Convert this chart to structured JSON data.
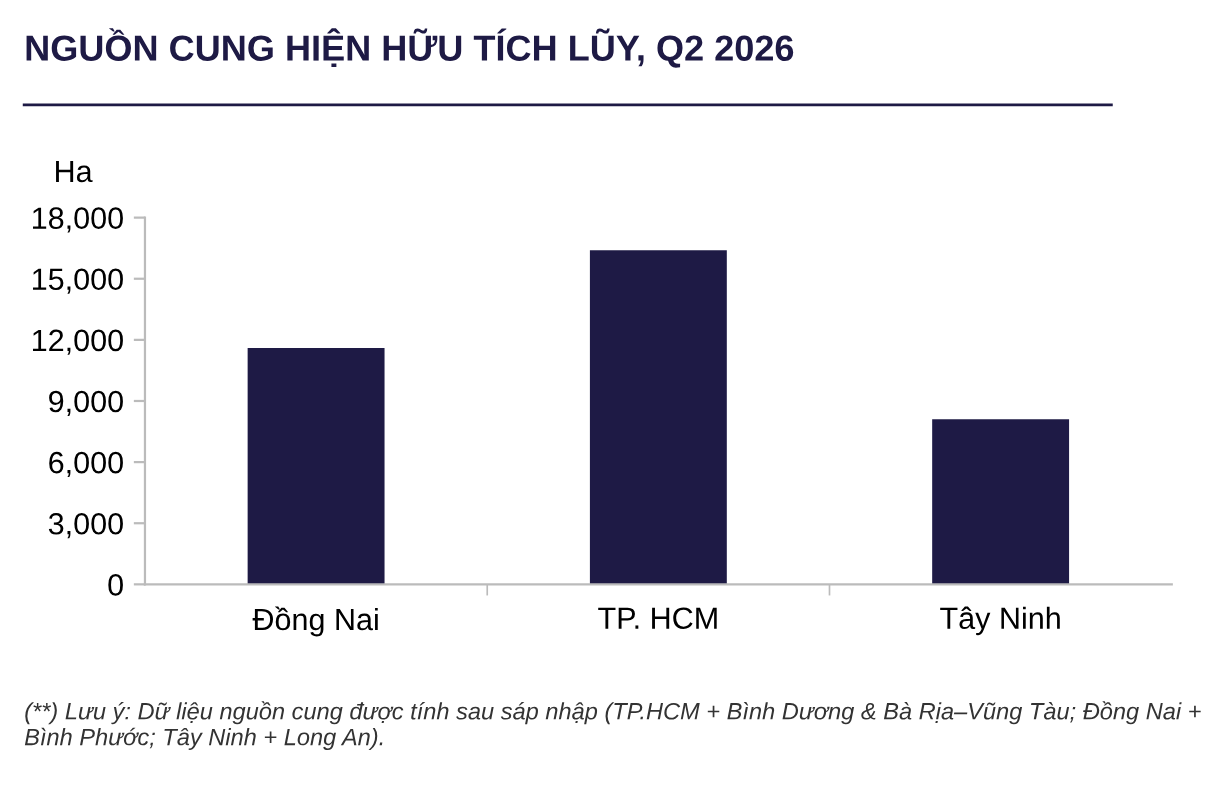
{
  "chart_data": {
    "type": "bar",
    "title": "NGUỒN CUNG HIỆN HỮU TÍCH LŨY, Q2 2026",
    "ylabel": "Ha",
    "categories": [
      "Đồng Nai",
      "TP. HCM",
      "Tây Ninh"
    ],
    "values": [
      11600,
      16400,
      8100
    ],
    "color": "#1e1a45",
    "ylim": [
      0,
      18000
    ],
    "yticks": [
      {
        "value": 0,
        "label": "0"
      },
      {
        "value": 3000,
        "label": "3,000"
      },
      {
        "value": 6000,
        "label": "6,000"
      },
      {
        "value": 9000,
        "label": "9,000"
      },
      {
        "value": 12000,
        "label": "12,000"
      },
      {
        "value": 15000,
        "label": "15,000"
      },
      {
        "value": 18000,
        "label": "18,000"
      }
    ],
    "grid": false,
    "legend": false,
    "annotations": [
      "(**) Lưu ý: Dữ liệu nguồn cung được tính sau sáp nhập (TP.HCM + Bình Dương & Bà Rịa–Vũng Tàu; Đồng Nai + Bình Phước; Tây Ninh + Long An)."
    ]
  }
}
